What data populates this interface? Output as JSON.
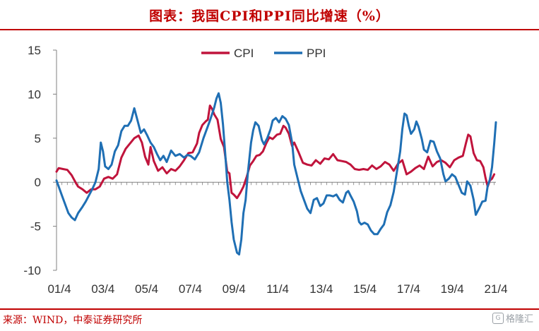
{
  "header": {
    "title": "图表：我国CPI和PPI同比增速（%）"
  },
  "footer": {
    "source": "来源：WIND，中泰证券研究所",
    "watermark": "格隆汇"
  },
  "colors": {
    "title": "#c00000",
    "cpi": "#c0143c",
    "ppi": "#1f6fb4",
    "axis": "#808080"
  },
  "chart_data": {
    "type": "line",
    "title": "图表：我国CPI和PPI同比增速（%）",
    "xlabel": "",
    "ylabel": "",
    "x_ticks": [
      "01/4",
      "03/4",
      "05/4",
      "07/4",
      "09/4",
      "11/4",
      "13/4",
      "15/4",
      "17/4",
      "19/4",
      "21/4"
    ],
    "ylim": [
      -10,
      15
    ],
    "y_ticks": [
      -10,
      -5,
      0,
      5,
      10,
      15
    ],
    "grid": false,
    "legend": "top-center",
    "x_range": [
      2001.0,
      2021.33
    ],
    "series": [
      {
        "name": "CPI",
        "color": "#c0143c",
        "points": [
          [
            2001.0,
            1.2
          ],
          [
            2001.1,
            1.6
          ],
          [
            2001.3,
            1.5
          ],
          [
            2001.5,
            1.4
          ],
          [
            2001.7,
            0.8
          ],
          [
            2001.9,
            -0.1
          ],
          [
            2002.0,
            -0.5
          ],
          [
            2002.2,
            -0.8
          ],
          [
            2002.4,
            -1.2
          ],
          [
            2002.6,
            -0.8
          ],
          [
            2002.8,
            -0.8
          ],
          [
            2003.0,
            -0.5
          ],
          [
            2003.2,
            0.4
          ],
          [
            2003.4,
            0.6
          ],
          [
            2003.6,
            0.4
          ],
          [
            2003.8,
            0.9
          ],
          [
            2004.0,
            2.8
          ],
          [
            2004.2,
            3.8
          ],
          [
            2004.4,
            4.4
          ],
          [
            2004.6,
            5.0
          ],
          [
            2004.8,
            5.3
          ],
          [
            2004.95,
            4.5
          ],
          [
            2005.1,
            2.9
          ],
          [
            2005.25,
            2.0
          ],
          [
            2005.35,
            4.0
          ],
          [
            2005.5,
            2.4
          ],
          [
            2005.7,
            1.3
          ],
          [
            2005.9,
            1.7
          ],
          [
            2006.1,
            1.0
          ],
          [
            2006.3,
            1.5
          ],
          [
            2006.5,
            1.3
          ],
          [
            2006.7,
            1.8
          ],
          [
            2006.9,
            2.5
          ],
          [
            2007.1,
            3.3
          ],
          [
            2007.3,
            3.4
          ],
          [
            2007.5,
            4.4
          ],
          [
            2007.6,
            5.6
          ],
          [
            2007.75,
            6.5
          ],
          [
            2007.9,
            6.9
          ],
          [
            2008.0,
            7.1
          ],
          [
            2008.1,
            8.7
          ],
          [
            2008.2,
            8.3
          ],
          [
            2008.3,
            7.7
          ],
          [
            2008.45,
            7.1
          ],
          [
            2008.6,
            4.9
          ],
          [
            2008.75,
            4.0
          ],
          [
            2008.9,
            1.2
          ],
          [
            2009.0,
            1.0
          ],
          [
            2009.1,
            -1.2
          ],
          [
            2009.2,
            -1.4
          ],
          [
            2009.35,
            -1.8
          ],
          [
            2009.5,
            -1.2
          ],
          [
            2009.65,
            -0.5
          ],
          [
            2009.8,
            0.6
          ],
          [
            2009.95,
            1.9
          ],
          [
            2010.1,
            2.4
          ],
          [
            2010.25,
            3.0
          ],
          [
            2010.4,
            3.1
          ],
          [
            2010.55,
            3.5
          ],
          [
            2010.7,
            4.4
          ],
          [
            2010.85,
            5.1
          ],
          [
            2011.0,
            4.9
          ],
          [
            2011.2,
            5.4
          ],
          [
            2011.35,
            5.5
          ],
          [
            2011.5,
            6.4
          ],
          [
            2011.6,
            6.2
          ],
          [
            2011.75,
            5.5
          ],
          [
            2011.9,
            4.1
          ],
          [
            2012.0,
            4.5
          ],
          [
            2012.2,
            3.4
          ],
          [
            2012.4,
            2.2
          ],
          [
            2012.6,
            2.0
          ],
          [
            2012.8,
            1.9
          ],
          [
            2013.0,
            2.5
          ],
          [
            2013.2,
            2.1
          ],
          [
            2013.4,
            2.7
          ],
          [
            2013.6,
            2.6
          ],
          [
            2013.8,
            3.2
          ],
          [
            2014.0,
            2.5
          ],
          [
            2014.2,
            2.4
          ],
          [
            2014.4,
            2.3
          ],
          [
            2014.6,
            2.0
          ],
          [
            2014.8,
            1.5
          ],
          [
            2015.0,
            1.4
          ],
          [
            2015.2,
            1.5
          ],
          [
            2015.4,
            1.4
          ],
          [
            2015.6,
            1.9
          ],
          [
            2015.8,
            1.5
          ],
          [
            2016.0,
            1.8
          ],
          [
            2016.2,
            2.3
          ],
          [
            2016.4,
            2.0
          ],
          [
            2016.6,
            1.3
          ],
          [
            2016.8,
            2.1
          ],
          [
            2017.0,
            2.5
          ],
          [
            2017.2,
            0.9
          ],
          [
            2017.4,
            1.2
          ],
          [
            2017.6,
            1.6
          ],
          [
            2017.8,
            1.9
          ],
          [
            2018.0,
            1.5
          ],
          [
            2018.2,
            2.9
          ],
          [
            2018.4,
            1.8
          ],
          [
            2018.6,
            2.3
          ],
          [
            2018.8,
            2.5
          ],
          [
            2019.0,
            2.2
          ],
          [
            2019.2,
            1.7
          ],
          [
            2019.4,
            2.5
          ],
          [
            2019.6,
            2.8
          ],
          [
            2019.8,
            3.0
          ],
          [
            2019.95,
            4.5
          ],
          [
            2020.05,
            5.4
          ],
          [
            2020.15,
            5.2
          ],
          [
            2020.3,
            3.3
          ],
          [
            2020.45,
            2.5
          ],
          [
            2020.6,
            2.4
          ],
          [
            2020.75,
            1.7
          ],
          [
            2020.85,
            0.5
          ],
          [
            2020.95,
            -0.5
          ],
          [
            2021.05,
            0.2
          ],
          [
            2021.15,
            0.4
          ],
          [
            2021.25,
            0.9
          ]
        ]
      },
      {
        "name": "PPI",
        "color": "#1f6fb4",
        "points": [
          [
            2001.0,
            0.2
          ],
          [
            2001.1,
            -0.5
          ],
          [
            2001.25,
            -1.5
          ],
          [
            2001.4,
            -2.5
          ],
          [
            2001.55,
            -3.5
          ],
          [
            2001.7,
            -4.0
          ],
          [
            2001.85,
            -4.3
          ],
          [
            2002.0,
            -3.5
          ],
          [
            2002.2,
            -2.8
          ],
          [
            2002.35,
            -2.2
          ],
          [
            2002.5,
            -1.5
          ],
          [
            2002.65,
            -0.8
          ],
          [
            2002.8,
            0.0
          ],
          [
            2002.95,
            1.5
          ],
          [
            2003.05,
            4.5
          ],
          [
            2003.15,
            3.5
          ],
          [
            2003.25,
            1.8
          ],
          [
            2003.4,
            1.5
          ],
          [
            2003.55,
            2.0
          ],
          [
            2003.7,
            3.5
          ],
          [
            2003.85,
            4.2
          ],
          [
            2004.0,
            5.8
          ],
          [
            2004.15,
            6.4
          ],
          [
            2004.3,
            6.4
          ],
          [
            2004.45,
            7.0
          ],
          [
            2004.6,
            8.4
          ],
          [
            2004.75,
            7.0
          ],
          [
            2004.9,
            5.6
          ],
          [
            2005.05,
            6.0
          ],
          [
            2005.2,
            5.3
          ],
          [
            2005.35,
            4.5
          ],
          [
            2005.5,
            4.0
          ],
          [
            2005.65,
            3.2
          ],
          [
            2005.8,
            2.5
          ],
          [
            2005.95,
            3.0
          ],
          [
            2006.1,
            2.3
          ],
          [
            2006.3,
            3.6
          ],
          [
            2006.5,
            3.0
          ],
          [
            2006.7,
            3.2
          ],
          [
            2006.9,
            2.8
          ],
          [
            2007.05,
            3.1
          ],
          [
            2007.2,
            3.0
          ],
          [
            2007.4,
            2.6
          ],
          [
            2007.6,
            3.4
          ],
          [
            2007.8,
            5.0
          ],
          [
            2007.95,
            6.0
          ],
          [
            2008.1,
            7.0
          ],
          [
            2008.3,
            8.5
          ],
          [
            2008.4,
            9.5
          ],
          [
            2008.5,
            10.1
          ],
          [
            2008.6,
            9.0
          ],
          [
            2008.7,
            6.6
          ],
          [
            2008.8,
            3.5
          ],
          [
            2008.9,
            0.0
          ],
          [
            2009.0,
            -2.0
          ],
          [
            2009.1,
            -4.5
          ],
          [
            2009.2,
            -6.5
          ],
          [
            2009.35,
            -8.0
          ],
          [
            2009.45,
            -8.2
          ],
          [
            2009.55,
            -6.5
          ],
          [
            2009.65,
            -3.5
          ],
          [
            2009.75,
            -2.0
          ],
          [
            2009.85,
            1.0
          ],
          [
            2010.0,
            4.5
          ],
          [
            2010.1,
            5.9
          ],
          [
            2010.2,
            6.8
          ],
          [
            2010.35,
            6.4
          ],
          [
            2010.5,
            4.8
          ],
          [
            2010.6,
            4.3
          ],
          [
            2010.75,
            5.0
          ],
          [
            2010.9,
            6.0
          ],
          [
            2011.0,
            7.0
          ],
          [
            2011.15,
            7.3
          ],
          [
            2011.3,
            6.8
          ],
          [
            2011.45,
            7.5
          ],
          [
            2011.6,
            7.2
          ],
          [
            2011.75,
            6.5
          ],
          [
            2011.9,
            4.5
          ],
          [
            2012.0,
            2.0
          ],
          [
            2012.15,
            0.5
          ],
          [
            2012.3,
            -1.0
          ],
          [
            2012.45,
            -2.0
          ],
          [
            2012.6,
            -3.0
          ],
          [
            2012.75,
            -3.5
          ],
          [
            2012.9,
            -2.0
          ],
          [
            2013.05,
            -1.8
          ],
          [
            2013.2,
            -2.7
          ],
          [
            2013.35,
            -2.4
          ],
          [
            2013.5,
            -1.5
          ],
          [
            2013.65,
            -1.5
          ],
          [
            2013.8,
            -1.6
          ],
          [
            2013.95,
            -1.4
          ],
          [
            2014.1,
            -2.0
          ],
          [
            2014.25,
            -2.3
          ],
          [
            2014.4,
            -1.2
          ],
          [
            2014.5,
            -1.0
          ],
          [
            2014.6,
            -1.5
          ],
          [
            2014.75,
            -2.2
          ],
          [
            2014.9,
            -3.3
          ],
          [
            2015.0,
            -4.5
          ],
          [
            2015.1,
            -4.8
          ],
          [
            2015.25,
            -4.6
          ],
          [
            2015.4,
            -4.8
          ],
          [
            2015.55,
            -5.5
          ],
          [
            2015.7,
            -5.9
          ],
          [
            2015.85,
            -5.9
          ],
          [
            2016.0,
            -5.3
          ],
          [
            2016.15,
            -4.8
          ],
          [
            2016.3,
            -3.4
          ],
          [
            2016.45,
            -2.6
          ],
          [
            2016.6,
            -1.1
          ],
          [
            2016.75,
            1.2
          ],
          [
            2016.9,
            3.5
          ],
          [
            2017.0,
            6.0
          ],
          [
            2017.1,
            7.8
          ],
          [
            2017.2,
            7.6
          ],
          [
            2017.3,
            6.4
          ],
          [
            2017.4,
            5.5
          ],
          [
            2017.55,
            6.0
          ],
          [
            2017.65,
            6.9
          ],
          [
            2017.75,
            6.3
          ],
          [
            2017.9,
            4.9
          ],
          [
            2018.0,
            3.7
          ],
          [
            2018.15,
            3.4
          ],
          [
            2018.3,
            4.7
          ],
          [
            2018.45,
            4.6
          ],
          [
            2018.6,
            3.5
          ],
          [
            2018.75,
            2.7
          ],
          [
            2018.9,
            0.9
          ],
          [
            2019.0,
            0.1
          ],
          [
            2019.15,
            0.4
          ],
          [
            2019.3,
            0.9
          ],
          [
            2019.45,
            0.6
          ],
          [
            2019.6,
            -0.3
          ],
          [
            2019.75,
            -1.2
          ],
          [
            2019.9,
            -1.4
          ],
          [
            2020.0,
            0.1
          ],
          [
            2020.15,
            -0.4
          ],
          [
            2020.3,
            -2.0
          ],
          [
            2020.4,
            -3.7
          ],
          [
            2020.55,
            -3.0
          ],
          [
            2020.7,
            -2.2
          ],
          [
            2020.85,
            -2.1
          ],
          [
            2020.95,
            -0.4
          ],
          [
            2021.05,
            0.3
          ],
          [
            2021.15,
            1.7
          ],
          [
            2021.25,
            4.4
          ],
          [
            2021.33,
            6.8
          ]
        ]
      }
    ]
  }
}
